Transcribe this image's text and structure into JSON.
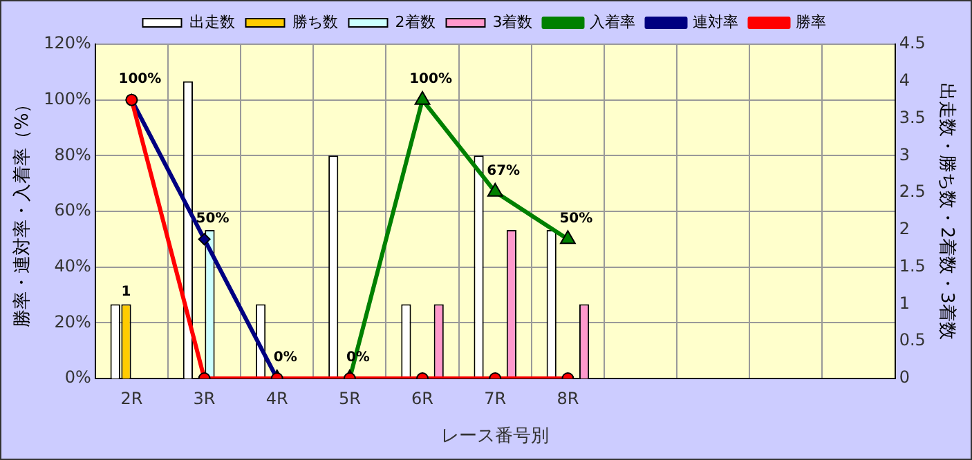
{
  "chart_data": {
    "type": "bar",
    "xlabel": "レース番号別",
    "ylabel": "勝率・連対率・入着率（%）",
    "y2label": "出走数・勝ち数・2着数・3着数",
    "categories": [
      "2R",
      "3R",
      "4R",
      "5R",
      "6R",
      "7R",
      "8R",
      null,
      null,
      null,
      null
    ],
    "series": [
      {
        "name": "出走数",
        "axis": "y2",
        "color": "#ffffff",
        "values": [
          1,
          4,
          1,
          3,
          1,
          3,
          2,
          null,
          null,
          null,
          null
        ]
      },
      {
        "name": "勝ち数",
        "axis": "y2",
        "color": "#ffcc00",
        "values": [
          1,
          0,
          0,
          0,
          0,
          0,
          0,
          null,
          null,
          null,
          null
        ],
        "value_labels": [
          "1",
          null,
          null,
          null,
          null,
          null,
          null,
          null,
          null,
          null,
          null
        ]
      },
      {
        "name": "2着数",
        "axis": "y2",
        "color": "#ccffff",
        "values": [
          0,
          2,
          0,
          0,
          0,
          0,
          0,
          null,
          null,
          null,
          null
        ]
      },
      {
        "name": "3着数",
        "axis": "y2",
        "color": "#ff99cc",
        "values": [
          0,
          0,
          0,
          0,
          1,
          2,
          1,
          null,
          null,
          null,
          null
        ]
      },
      {
        "name": "入着率",
        "type": "line",
        "marker": "triangle",
        "color": "#008000",
        "values": [
          null,
          null,
          0,
          0,
          100,
          67,
          50,
          null,
          null,
          null,
          null
        ],
        "value_labels": [
          null,
          null,
          "0%",
          "0%",
          "100%",
          "67%",
          "50%",
          null,
          null,
          null,
          null
        ]
      },
      {
        "name": "連対率",
        "type": "line",
        "marker": "diamond",
        "color": "#000080",
        "values": [
          100,
          50,
          0,
          null,
          null,
          null,
          null,
          null,
          null,
          null,
          null
        ],
        "value_labels": [
          "100%",
          "50%",
          null,
          null,
          null,
          null,
          null,
          null,
          null,
          null,
          null
        ]
      },
      {
        "name": "勝率",
        "type": "line",
        "marker": "circle",
        "color": "#ff0000",
        "values": [
          100,
          0,
          0,
          0,
          0,
          0,
          0,
          null,
          null,
          null,
          null
        ]
      }
    ],
    "ylim": [
      0,
      120
    ],
    "yticks": [
      {
        "value": 0,
        "label": "0%"
      },
      {
        "value": 20,
        "label": "20%"
      },
      {
        "value": 40,
        "label": "40%"
      },
      {
        "value": 60,
        "label": "60%"
      },
      {
        "value": 80,
        "label": "80%"
      },
      {
        "value": 100,
        "label": "100%"
      },
      {
        "value": 120,
        "label": "120%"
      }
    ],
    "y2lim": [
      0,
      4.5
    ],
    "y2ticks": [
      0,
      0.5,
      1,
      1.5,
      2,
      2.5,
      3,
      3.5,
      4,
      4.5
    ],
    "grid": true,
    "legend": "top",
    "line_style": "solid"
  }
}
